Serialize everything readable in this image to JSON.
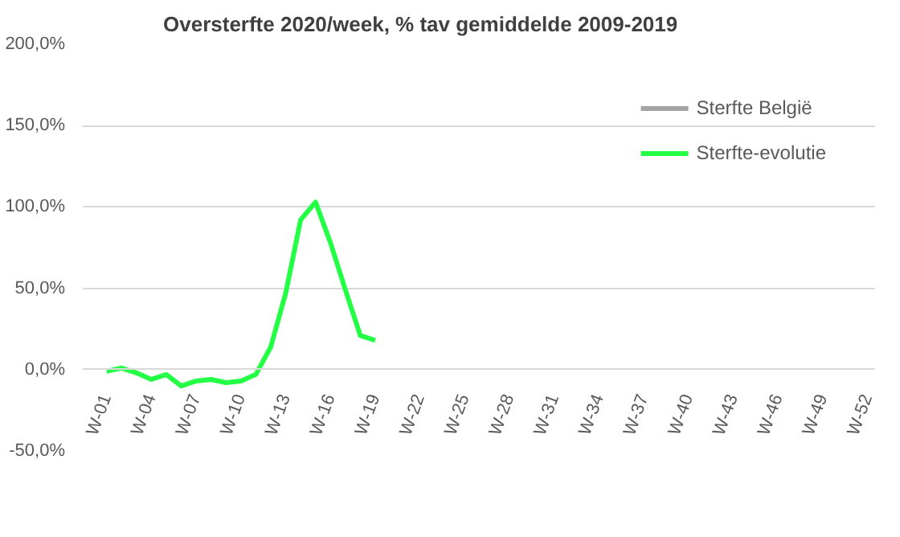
{
  "chart_data": {
    "type": "line",
    "title": "Oversterfte  2020/week, % tav gemiddelde 2009-2019",
    "categories": [
      "W-01",
      null,
      null,
      "W-04",
      null,
      null,
      "W-07",
      null,
      null,
      "W-10",
      null,
      null,
      "W-13",
      null,
      null,
      "W-16",
      null,
      null,
      "W-19",
      null,
      null,
      "W-22",
      null,
      null,
      "W-25",
      null,
      null,
      "W-28",
      null,
      null,
      "W-31",
      null,
      null,
      "W-34",
      null,
      null,
      "W-37",
      null,
      null,
      "W-40",
      null,
      null,
      "W-43",
      null,
      null,
      "W-46",
      null,
      null,
      "W-49",
      null,
      null,
      "W-52"
    ],
    "series": [
      {
        "name": "Sterfte België",
        "color": "#a5a5a5",
        "values": [
          null,
          null,
          null,
          null,
          null,
          null,
          null,
          null,
          null,
          null,
          null,
          null,
          null,
          null,
          null,
          null,
          null,
          null,
          null,
          null,
          null,
          null,
          null,
          null,
          null,
          null,
          null,
          null,
          null,
          null,
          null,
          null,
          null,
          null,
          null,
          null,
          null,
          null,
          null,
          null,
          null,
          null,
          null,
          null,
          null,
          null,
          null,
          null,
          null,
          null,
          null,
          null
        ]
      },
      {
        "name": "Sterfte-evolutie",
        "color": "#22ff44",
        "values": [
          -1,
          1,
          -2,
          -6,
          -3,
          -10,
          -7,
          -6,
          -8,
          -7,
          -3,
          14,
          47,
          92,
          103,
          78,
          49,
          21,
          18,
          null,
          null,
          null,
          null,
          null,
          null,
          null,
          null,
          null,
          null,
          null,
          null,
          null,
          null,
          null,
          null,
          null,
          null,
          null,
          null,
          null,
          null,
          null,
          null,
          null,
          null,
          null,
          null,
          null,
          null,
          null,
          null,
          null
        ]
      }
    ],
    "ylim": [
      -50,
      200
    ],
    "yticks": [
      {
        "value": -50,
        "label": "-50,0%"
      },
      {
        "value": 0,
        "label": "0,0%"
      },
      {
        "value": 50,
        "label": "50,0%"
      },
      {
        "value": 100,
        "label": "100,0%"
      },
      {
        "value": 150,
        "label": "150,0%"
      },
      {
        "value": 200,
        "label": "200,0%"
      }
    ],
    "grid": "y",
    "legend": "top right",
    "marker": "none",
    "line_style": "solid"
  }
}
